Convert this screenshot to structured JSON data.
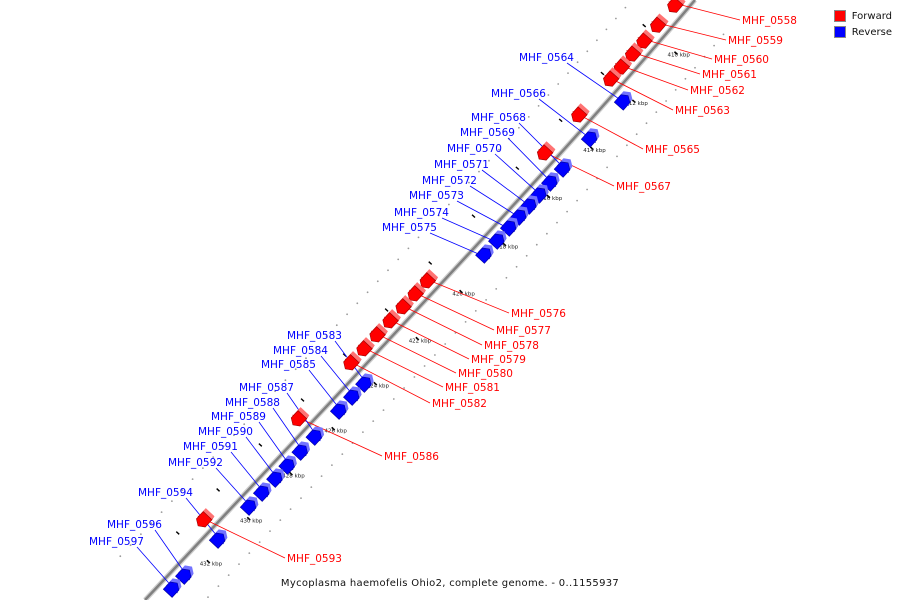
{
  "caption": "Mycoplasma haemofelis Ohio2, complete genome. - 0..1155937",
  "legend": [
    {
      "label": "Forward",
      "color": "#ff0000"
    },
    {
      "label": "Reverse",
      "color": "#0000ff"
    }
  ],
  "colors": {
    "forward": "#ff0000",
    "reverse": "#0000ff",
    "backbone": "#808080"
  },
  "ticks": [
    "410 kbp",
    "412 kbp",
    "414 kbp",
    "416 kbp",
    "418 kbp",
    "420 kbp",
    "422 kbp",
    "424 kbp",
    "426 kbp",
    "428 kbp",
    "430 kbp",
    "432 kbp"
  ],
  "genes": [
    {
      "label": "MHF_0558",
      "strand": "forward"
    },
    {
      "label": "MHF_0559",
      "strand": "forward"
    },
    {
      "label": "MHF_0560",
      "strand": "forward"
    },
    {
      "label": "MHF_0561",
      "strand": "forward"
    },
    {
      "label": "MHF_0562",
      "strand": "forward"
    },
    {
      "label": "MHF_0563",
      "strand": "forward"
    },
    {
      "label": "MHF_0564",
      "strand": "reverse"
    },
    {
      "label": "MHF_0565",
      "strand": "forward"
    },
    {
      "label": "MHF_0566",
      "strand": "reverse"
    },
    {
      "label": "MHF_0567",
      "strand": "forward"
    },
    {
      "label": "MHF_0568",
      "strand": "reverse"
    },
    {
      "label": "MHF_0569",
      "strand": "reverse"
    },
    {
      "label": "MHF_0570",
      "strand": "reverse"
    },
    {
      "label": "MHF_0571",
      "strand": "reverse"
    },
    {
      "label": "MHF_0572",
      "strand": "reverse"
    },
    {
      "label": "MHF_0573",
      "strand": "reverse"
    },
    {
      "label": "MHF_0574",
      "strand": "reverse"
    },
    {
      "label": "MHF_0575",
      "strand": "reverse"
    },
    {
      "label": "MHF_0576",
      "strand": "forward"
    },
    {
      "label": "MHF_0577",
      "strand": "forward"
    },
    {
      "label": "MHF_0578",
      "strand": "forward"
    },
    {
      "label": "MHF_0579",
      "strand": "forward"
    },
    {
      "label": "MHF_0580",
      "strand": "forward"
    },
    {
      "label": "MHF_0581",
      "strand": "forward"
    },
    {
      "label": "MHF_0582",
      "strand": "forward"
    },
    {
      "label": "MHF_0583",
      "strand": "reverse"
    },
    {
      "label": "MHF_0584",
      "strand": "reverse"
    },
    {
      "label": "MHF_0585",
      "strand": "reverse"
    },
    {
      "label": "MHF_0586",
      "strand": "forward"
    },
    {
      "label": "MHF_0587",
      "strand": "reverse"
    },
    {
      "label": "MHF_0588",
      "strand": "reverse"
    },
    {
      "label": "MHF_0589",
      "strand": "reverse"
    },
    {
      "label": "MHF_0590",
      "strand": "reverse"
    },
    {
      "label": "MHF_0591",
      "strand": "reverse"
    },
    {
      "label": "MHF_0592",
      "strand": "reverse"
    },
    {
      "label": "MHF_0593",
      "strand": "forward"
    },
    {
      "label": "MHF_0594",
      "strand": "reverse"
    },
    {
      "label": "MHF_0596",
      "strand": "reverse"
    },
    {
      "label": "MHF_0597",
      "strand": "reverse"
    }
  ]
}
